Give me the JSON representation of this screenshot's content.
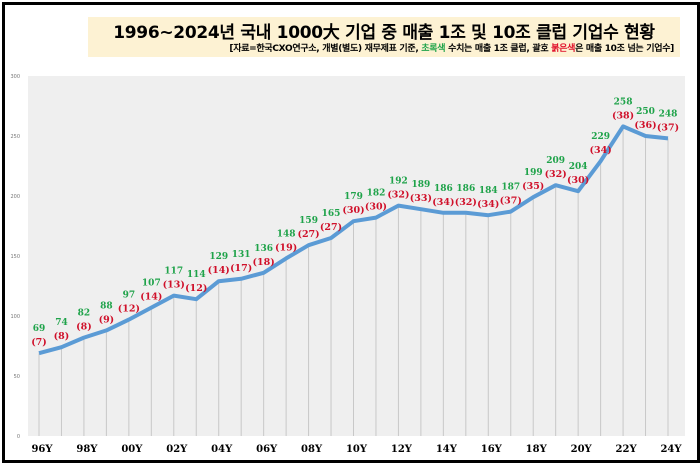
{
  "title": "1996~2024년 국내 1000大 기업 중 매출 1조 및 10조 클럽 기업수 현황",
  "subtitle": {
    "part1": "[자료=한국CXO연구소, 개별(별도) 재무제표 기준, ",
    "green_word": "초록색",
    "part2": " 수치는 매출 1조 클럽, 괄호 ",
    "red_word": "붉은색",
    "part3": "은 매출 10조 넘는 기업수]"
  },
  "chart_data": {
    "type": "line",
    "x": [
      "96Y",
      "97Y",
      "98Y",
      "99Y",
      "00Y",
      "01Y",
      "02Y",
      "03Y",
      "04Y",
      "05Y",
      "06Y",
      "07Y",
      "08Y",
      "09Y",
      "10Y",
      "11Y",
      "12Y",
      "13Y",
      "14Y",
      "15Y",
      "16Y",
      "17Y",
      "18Y",
      "19Y",
      "20Y",
      "21Y",
      "22Y",
      "23Y",
      "24Y"
    ],
    "x_tick_labels": [
      "96Y",
      "98Y",
      "00Y",
      "02Y",
      "04Y",
      "06Y",
      "08Y",
      "10Y",
      "12Y",
      "14Y",
      "16Y",
      "18Y",
      "20Y",
      "22Y",
      "24Y"
    ],
    "series": [
      {
        "values": [
          69,
          74,
          82,
          88,
          97,
          107,
          117,
          114,
          129,
          131,
          136,
          148,
          159,
          165,
          179,
          182,
          192,
          189,
          186,
          186,
          184,
          187,
          199,
          209,
          204,
          229,
          258,
          250,
          248
        ],
        "color": "#5b9bd5"
      }
    ],
    "labels_1jo": [
      69,
      74,
      82,
      88,
      97,
      107,
      117,
      114,
      129,
      131,
      136,
      148,
      159,
      165,
      179,
      182,
      192,
      189,
      186,
      186,
      184,
      187,
      199,
      209,
      204,
      229,
      258,
      250,
      248
    ],
    "labels_10jo": [
      7,
      8,
      8,
      9,
      12,
      14,
      13,
      12,
      14,
      17,
      18,
      19,
      27,
      27,
      30,
      30,
      32,
      33,
      34,
      32,
      34,
      37,
      35,
      32,
      30,
      34,
      38,
      36,
      37
    ],
    "label_colors": {
      "1jo": "#1fa34a",
      "10jo": "#d0102a"
    },
    "ylim": [
      0,
      300
    ],
    "y_ticks": [
      0,
      50,
      100,
      150,
      200,
      250,
      300
    ],
    "grid": false,
    "drop_lines": true,
    "background": "#efefef"
  }
}
